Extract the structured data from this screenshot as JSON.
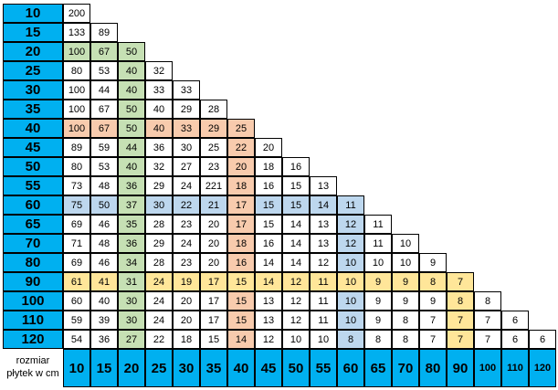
{
  "table": {
    "corner_label_line1": "rozmiar",
    "corner_label_line2": "płytek w cm",
    "columns": [
      "10",
      "15",
      "20",
      "25",
      "30",
      "35",
      "40",
      "45",
      "50",
      "55",
      "60",
      "65",
      "70",
      "80",
      "90",
      "100",
      "110",
      "120"
    ],
    "rows": [
      {
        "label": "10",
        "values": [
          200
        ],
        "fills": "w"
      },
      {
        "label": "15",
        "values": [
          133,
          89
        ],
        "fills": "ww"
      },
      {
        "label": "20",
        "values": [
          100,
          67,
          50
        ],
        "fills": "ggg"
      },
      {
        "label": "25",
        "values": [
          80,
          53,
          40,
          32
        ],
        "fills": "wwgw"
      },
      {
        "label": "30",
        "values": [
          100,
          44,
          40,
          33,
          33
        ],
        "fills": "wwgww"
      },
      {
        "label": "35",
        "values": [
          100,
          67,
          50,
          40,
          29,
          28
        ],
        "fills": "wwgwww"
      },
      {
        "label": "40",
        "values": [
          100,
          67,
          50,
          40,
          33,
          29,
          25
        ],
        "fills": "oogoooo"
      },
      {
        "label": "45",
        "values": [
          89,
          59,
          44,
          36,
          30,
          25,
          22,
          20
        ],
        "fills": "wwgwwwow"
      },
      {
        "label": "50",
        "values": [
          80,
          53,
          40,
          32,
          27,
          23,
          20,
          18,
          16
        ],
        "fills": "wwgwwwoww"
      },
      {
        "label": "55",
        "values": [
          73,
          48,
          36,
          29,
          24,
          221,
          18,
          16,
          15,
          13
        ],
        "fills": "wwgwwwowww"
      },
      {
        "label": "60",
        "values": [
          75,
          50,
          37,
          30,
          22,
          21,
          17,
          15,
          15,
          14,
          11
        ],
        "fills": "bbgbbbobbbb"
      },
      {
        "label": "65",
        "values": [
          69,
          46,
          35,
          28,
          23,
          20,
          17,
          15,
          14,
          13,
          12,
          11
        ],
        "fills": "wwgwwwowwwbw"
      },
      {
        "label": "70",
        "values": [
          71,
          48,
          36,
          29,
          24,
          20,
          18,
          16,
          14,
          13,
          12,
          11,
          10
        ],
        "fills": "wwgwwwowwwbww"
      },
      {
        "label": "80",
        "values": [
          69,
          46,
          34,
          28,
          23,
          20,
          16,
          14,
          14,
          12,
          10,
          10,
          10,
          9
        ],
        "fills": "wwgwwwowwwbwww"
      },
      {
        "label": "90",
        "values": [
          61,
          41,
          31,
          24,
          19,
          17,
          15,
          14,
          12,
          11,
          10,
          9,
          9,
          8,
          7
        ],
        "fills": "yygyyyyyyyyyyyy"
      },
      {
        "label": "100",
        "values": [
          60,
          40,
          30,
          24,
          20,
          17,
          15,
          13,
          12,
          11,
          10,
          9,
          9,
          9,
          8,
          8
        ],
        "fills": "wwgwwwowwwbwwwyw"
      },
      {
        "label": "110",
        "values": [
          59,
          39,
          30,
          24,
          20,
          17,
          15,
          13,
          12,
          11,
          10,
          9,
          8,
          7,
          7,
          7,
          6
        ],
        "fills": "wwgwwwowwwbwwwyww"
      },
      {
        "label": "120",
        "values": [
          54,
          36,
          27,
          22,
          18,
          15,
          14,
          12,
          10,
          10,
          8,
          8,
          8,
          7,
          7,
          7,
          6,
          6
        ],
        "fills": "wwgwwwowwwbwwwywww"
      }
    ]
  },
  "colors": {
    "header_fill": "#00B0F0",
    "fill_codes": {
      "w": "#FFFFFF",
      "g": "#C6E0B4",
      "o": "#F8CBAD",
      "b": "#BDD7EE",
      "y": "#FFE699"
    },
    "border": "#000000"
  }
}
